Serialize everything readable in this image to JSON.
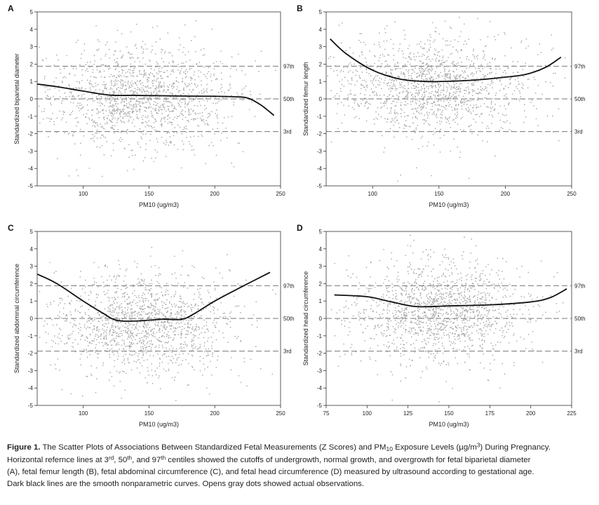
{
  "colors": {
    "points": "#a9a9a9",
    "smooth_curve": "#111111",
    "reference_lines": "#777777"
  },
  "reference_lines": {
    "values": [
      1.88,
      0,
      -1.88
    ],
    "labels": [
      "97th",
      "50th",
      "3rd"
    ],
    "style": "dashed"
  },
  "chart_data": [
    {
      "panel": "A",
      "type": "scatter",
      "title": "",
      "xlabel": "PM10 (ug/m3)",
      "ylabel": "Standardized biparietal diameter",
      "xlim": [
        65,
        250
      ],
      "ylim": [
        -5,
        5
      ],
      "xticks": [
        100,
        150,
        200,
        250
      ],
      "yticks": [
        -5,
        -4,
        -3,
        -2,
        -1,
        0,
        1,
        2,
        3,
        4,
        5
      ],
      "point_cloud": {
        "count": 1500,
        "x_center": 145,
        "x_spread": 35,
        "y_center": 0.1,
        "y_spread": 1.35
      },
      "smooth_curve": {
        "x": [
          65,
          80,
          100,
          120,
          140,
          160,
          180,
          200,
          215,
          225,
          235,
          245
        ],
        "y": [
          0.85,
          0.7,
          0.45,
          0.22,
          0.2,
          0.18,
          0.16,
          0.15,
          0.12,
          0.05,
          -0.35,
          -0.95
        ]
      }
    },
    {
      "panel": "B",
      "type": "scatter",
      "title": "",
      "xlabel": "PM10 (ug/m3)",
      "ylabel": "Standardized femur length",
      "xlim": [
        65,
        250
      ],
      "ylim": [
        -5,
        5
      ],
      "xticks": [
        100,
        150,
        200,
        250
      ],
      "yticks": [
        -5,
        -4,
        -3,
        -2,
        -1,
        0,
        1,
        2,
        3,
        4,
        5
      ],
      "point_cloud": {
        "count": 1500,
        "x_center": 145,
        "x_spread": 35,
        "y_center": 0.7,
        "y_spread": 1.3
      },
      "smooth_curve": {
        "x": [
          68,
          80,
          100,
          120,
          140,
          160,
          180,
          200,
          215,
          230,
          242
        ],
        "y": [
          3.45,
          2.6,
          1.65,
          1.15,
          1.0,
          1.02,
          1.1,
          1.25,
          1.4,
          1.8,
          2.4
        ]
      }
    },
    {
      "panel": "C",
      "type": "scatter",
      "title": "",
      "xlabel": "PM10 (ug/m3)",
      "ylabel": "Standardized abdominal circumference",
      "xlim": [
        65,
        250
      ],
      "ylim": [
        -5,
        5
      ],
      "xticks": [
        100,
        150,
        200,
        250
      ],
      "yticks": [
        -5,
        -4,
        -3,
        -2,
        -1,
        0,
        1,
        2,
        3,
        4,
        5
      ],
      "point_cloud": {
        "count": 1500,
        "x_center": 145,
        "x_spread": 33,
        "y_center": -0.3,
        "y_spread": 1.35
      },
      "smooth_curve": {
        "x": [
          65,
          80,
          100,
          115,
          125,
          140,
          160,
          175,
          185,
          200,
          220,
          242
        ],
        "y": [
          2.55,
          2.0,
          1.0,
          0.3,
          -0.1,
          -0.15,
          -0.05,
          -0.05,
          0.3,
          1.0,
          1.8,
          2.65
        ]
      }
    },
    {
      "panel": "D",
      "type": "scatter",
      "title": "",
      "xlabel": "PM10 (ug/m3)",
      "ylabel": "Standardized head circumference",
      "xlim": [
        75,
        225
      ],
      "ylim": [
        -5,
        5
      ],
      "xticks": [
        75,
        100,
        125,
        150,
        175,
        200,
        225
      ],
      "yticks": [
        -5,
        -4,
        -3,
        -2,
        -1,
        0,
        1,
        2,
        3,
        4,
        5
      ],
      "point_cloud": {
        "count": 1500,
        "x_center": 145,
        "x_spread": 25,
        "y_center": 0.4,
        "y_spread": 1.35
      },
      "smooth_curve": {
        "x": [
          80,
          100,
          115,
          130,
          150,
          175,
          200,
          212,
          222
        ],
        "y": [
          1.35,
          1.25,
          0.95,
          0.68,
          0.72,
          0.78,
          0.95,
          1.2,
          1.7
        ]
      }
    }
  ],
  "caption": {
    "label": "Figure 1.",
    "title_pre": " The Scatter Plots of Associations Between Standardized Fetal Measurements (Z Scores) and PM",
    "title_sub": "10",
    "title_mid": " Exposure Levels (µg/m",
    "title_sup": "3",
    "title_post": ") During Pregnancy.",
    "line1_a": "Horizontal refernce lines at 3",
    "line1_sup1": "rd",
    "line1_b": ", 50",
    "line1_sup2": "th",
    "line1_c": ", and 97",
    "line1_sup3": "th",
    "line1_d": " centiles showed the cutoffs of undergrowth, normal growth, and overgrowth for fetal biparietal diameter",
    "line2": "(A), fetal femur length (B), fetal abdominal circumference (C), and fetal head circumference (D) measured by ultrasound according to gestational age.",
    "line3": "Dark black lines are the smooth nonparametric curves. Opens gray dots showed actual observations."
  }
}
